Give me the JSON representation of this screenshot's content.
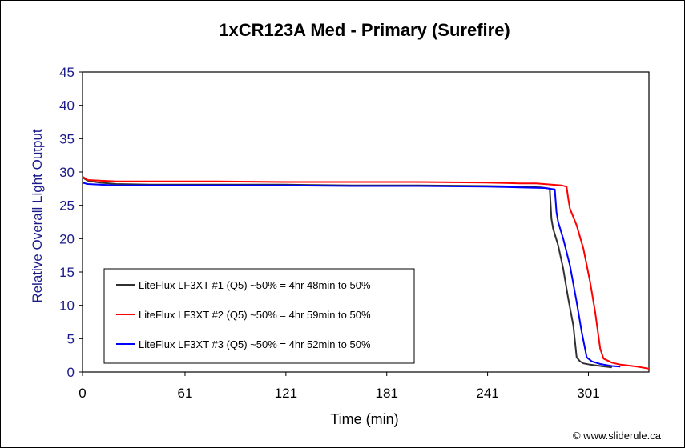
{
  "chart_data": {
    "type": "line",
    "title": "1xCR123A Med - Primary (Surefire)",
    "xlabel": "Time (min)",
    "ylabel": "Relative Overall Light Output",
    "xlim": [
      0,
      337
    ],
    "ylim": [
      0,
      45
    ],
    "x_ticks": [
      0,
      61,
      121,
      181,
      241,
      301
    ],
    "y_ticks": [
      0,
      5,
      10,
      15,
      20,
      25,
      30,
      35,
      40,
      45
    ],
    "grid": false,
    "legend_position": "lower-left",
    "copyright": "© www.sliderule.ca",
    "series": [
      {
        "name": "LiteFlux LF3XT #1 (Q5) ~50% = 4hr 48min to 50%",
        "color": "#303030",
        "x": [
          0,
          3,
          10,
          20,
          40,
          80,
          120,
          160,
          200,
          240,
          260,
          273,
          278,
          279,
          280,
          283,
          286,
          289,
          292,
          294,
          296,
          298,
          302,
          308,
          315
        ],
        "y": [
          29.2,
          28.7,
          28.4,
          28.2,
          28.1,
          28.1,
          28.1,
          28.0,
          28.0,
          27.9,
          27.8,
          27.7,
          27.5,
          23.0,
          21.5,
          19.0,
          15.5,
          11.0,
          7.0,
          2.2,
          1.6,
          1.3,
          1.1,
          0.9,
          0.7
        ]
      },
      {
        "name": "LiteFlux LF3XT #2 (Q5) ~50% = 4hr 59min to 50%",
        "color": "#ff0000",
        "x": [
          0,
          3,
          10,
          20,
          40,
          80,
          120,
          160,
          200,
          240,
          260,
          270,
          285,
          288,
          289,
          290,
          294,
          298,
          302,
          305,
          308,
          310,
          315,
          320,
          330,
          337
        ],
        "y": [
          29.3,
          28.8,
          28.7,
          28.6,
          28.6,
          28.6,
          28.5,
          28.5,
          28.5,
          28.4,
          28.3,
          28.3,
          28.0,
          27.8,
          26.0,
          24.5,
          22.0,
          18.5,
          13.5,
          9.0,
          3.5,
          2.0,
          1.4,
          1.1,
          0.8,
          0.5
        ]
      },
      {
        "name": "LiteFlux LF3XT #3 (Q5) ~50% = 4hr 52min to 50%",
        "color": "#0000ff",
        "x": [
          0,
          3,
          10,
          20,
          40,
          80,
          120,
          160,
          200,
          240,
          260,
          275,
          281,
          282,
          283,
          286,
          290,
          294,
          297,
          300,
          303,
          308,
          315,
          320
        ],
        "y": [
          28.4,
          28.2,
          28.1,
          28.0,
          28.0,
          28.0,
          28.0,
          27.9,
          27.9,
          27.8,
          27.7,
          27.6,
          27.4,
          24.0,
          22.5,
          20.0,
          16.0,
          10.5,
          6.0,
          2.2,
          1.6,
          1.2,
          0.9,
          0.8
        ]
      }
    ]
  }
}
